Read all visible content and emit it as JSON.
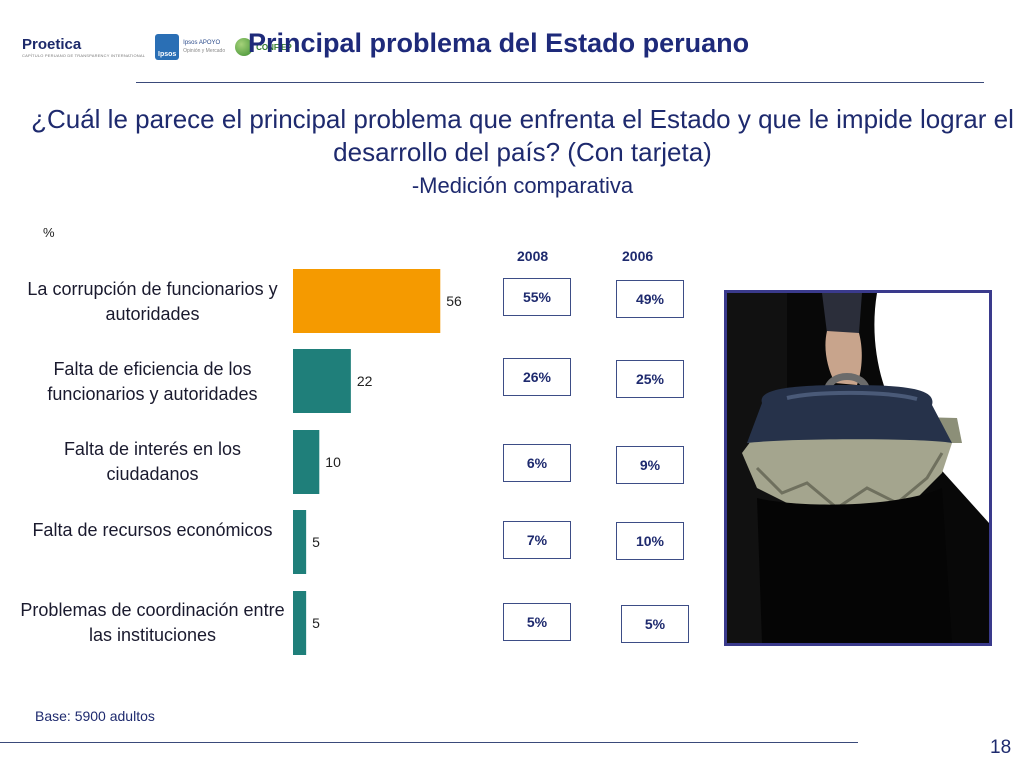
{
  "header": {
    "title": "Principal problema del Estado peruano",
    "logos": {
      "proetica": "Proetica",
      "proetica_subtitle": "CAPÍTULO PERUANO DE TRANSPARENCY INTERNATIONAL",
      "ipsos": "Ipsos",
      "ipsos_apoyo": "Ipsos APOYO",
      "ipsos_apoyo_sub": "Opinión y Mercado",
      "confiep": "CONFIEP"
    }
  },
  "question": {
    "text": "¿Cuál le parece el principal problema que enfrenta el Estado y que le impide lograr el desarrollo del país? (Con tarjeta)",
    "subtitle": "-Medición comparativa"
  },
  "chart_data": {
    "type": "bar",
    "orientation": "horizontal",
    "unit_label": "%",
    "categories": [
      "La corrupción de funcionarios y autoridades",
      "Falta de eficiencia de los funcionarios y autoridades",
      "Falta de interés en los ciudadanos",
      "Falta de recursos económicos",
      "Problemas de coordinación entre las instituciones"
    ],
    "values": [
      56,
      22,
      10,
      5,
      5
    ],
    "bar_colors": [
      "#f59a00",
      "#1f7f7a",
      "#1f7f7a",
      "#1f7f7a",
      "#1f7f7a"
    ],
    "comparison": {
      "years": [
        "2008",
        "2006"
      ],
      "values_2008": [
        "55%",
        "26%",
        "6%",
        "7%",
        "5%"
      ],
      "values_2006": [
        "49%",
        "25%",
        "9%",
        "10%",
        "5%"
      ]
    }
  },
  "image": {
    "icon": "briefcase-money-icon"
  },
  "footer": {
    "base_note": "Base: 5900 adultos",
    "page_number": "18"
  }
}
